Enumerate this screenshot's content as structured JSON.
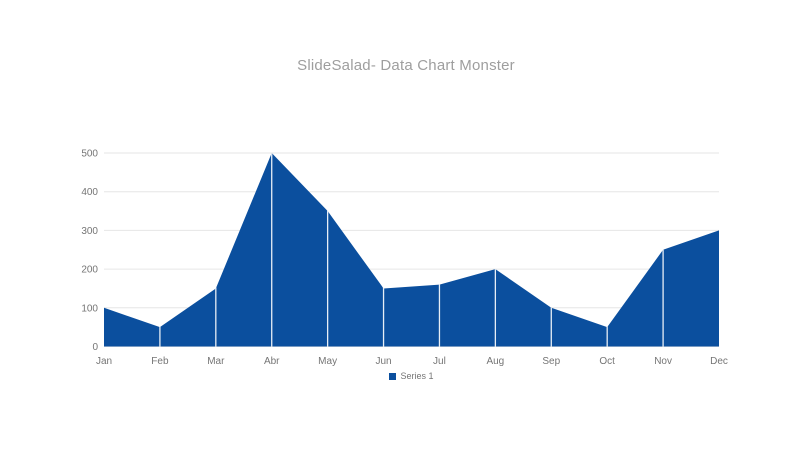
{
  "slide": {
    "background": "#FFFFFF"
  },
  "chart": {
    "title": "SlideSalad- Data Chart Monster",
    "colors": {
      "area": "#0B4F9E",
      "gridline": "#E6E6E6",
      "vertical_gridline": "#FFFFFF",
      "axis_label": "#757575",
      "title": "#9E9E9E",
      "legend_label": "#757575"
    }
  },
  "chart_data": {
    "type": "area",
    "title": "SlideSalad- Data Chart Monster",
    "categories": [
      "Jan",
      "Feb",
      "Mar",
      "Abr",
      "May",
      "Jun",
      "Jul",
      "Aug",
      "Sep",
      "Oct",
      "Nov",
      "Dec"
    ],
    "series": [
      {
        "name": "Series 1",
        "values": [
          100,
          50,
          150,
          500,
          350,
          150,
          160,
          200,
          100,
          50,
          250,
          300
        ]
      }
    ],
    "xlabel": "",
    "ylabel": "",
    "ylim": [
      0,
      500
    ],
    "y_ticks": [
      0,
      100,
      200,
      300,
      400,
      500
    ],
    "grid": "horizontal-behind-series, white vertical month lines over area",
    "legend_position": "bottom-center"
  }
}
